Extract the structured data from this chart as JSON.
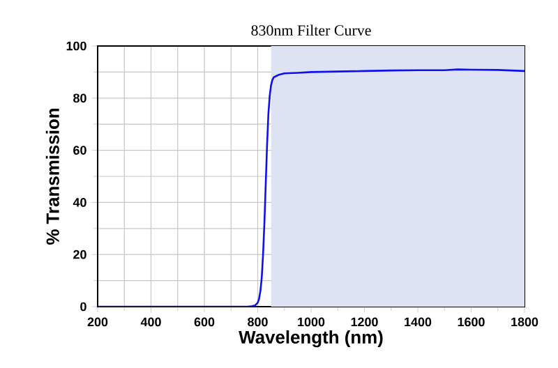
{
  "chart_data": {
    "type": "line",
    "title": "830nm Filter Curve",
    "xlabel": "Wavelength (nm)",
    "ylabel": "% Transmission",
    "series": [
      {
        "color": "#1010ee",
        "x": [
          200,
          400,
          600,
          700,
          760,
          780,
          790,
          800,
          805,
          810,
          815,
          820,
          825,
          830,
          835,
          840,
          845,
          850,
          855,
          860,
          870,
          880,
          900,
          950,
          1000,
          1100,
          1200,
          1300,
          1400,
          1500,
          1550,
          1600,
          1700,
          1800
        ],
        "values": [
          0,
          0,
          0,
          0,
          0,
          0.2,
          0.5,
          1.5,
          3,
          6,
          11,
          20,
          32,
          47,
          62,
          74,
          81,
          85,
          87,
          88,
          88.5,
          89,
          89.5,
          89.7,
          90,
          90.2,
          90.4,
          90.6,
          90.7,
          90.7,
          91,
          90.9,
          90.8,
          90.4
        ]
      }
    ],
    "bands": [
      {
        "axis": "x",
        "from": 850,
        "to": 1800,
        "color": "#dde3f3"
      }
    ],
    "xlim": [
      200,
      1800
    ],
    "ylim": [
      0,
      100
    ],
    "xticks": [
      200,
      400,
      600,
      800,
      1000,
      1200,
      1400,
      1600,
      1800
    ],
    "yticks": [
      0,
      20,
      40,
      60,
      80,
      100
    ],
    "grid": true,
    "marker": "none",
    "line_style": "solid"
  }
}
